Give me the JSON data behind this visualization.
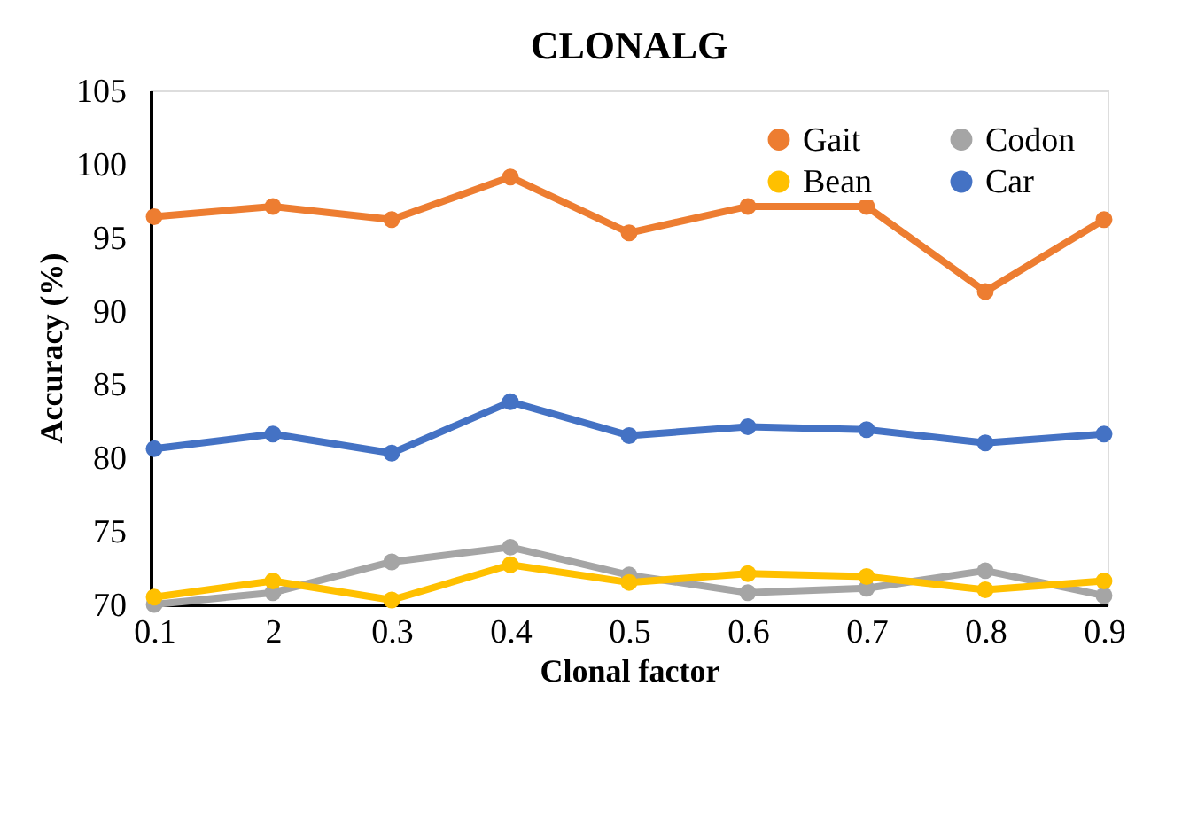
{
  "chart_data": {
    "type": "line",
    "title": "CLONALG",
    "xlabel": "Clonal factor",
    "ylabel": "Accuracy (%)",
    "categories": [
      "0.1",
      "2",
      "0.3",
      "0.4",
      "0.5",
      "0.6",
      "0.7",
      "0.8",
      "0.9"
    ],
    "series": [
      {
        "name": "Gait",
        "color": "#ed7d31",
        "values": [
          96.4,
          97.1,
          96.2,
          99.1,
          95.3,
          97.1,
          97.1,
          91.3,
          96.2
        ]
      },
      {
        "name": "Codon",
        "color": "#a5a5a5",
        "values": [
          70.0,
          70.8,
          72.9,
          73.9,
          72.0,
          70.8,
          71.1,
          72.3,
          70.6
        ]
      },
      {
        "name": "Bean",
        "color": "#ffc000",
        "values": [
          70.5,
          71.6,
          70.3,
          72.7,
          71.5,
          72.1,
          71.9,
          71.0,
          71.6
        ]
      },
      {
        "name": "Car",
        "color": "#4472c4",
        "values": [
          80.6,
          81.6,
          80.3,
          83.8,
          81.5,
          82.1,
          81.9,
          81.0,
          81.6
        ]
      }
    ],
    "ylim": [
      70,
      105
    ],
    "yticks": [
      70,
      75,
      80,
      85,
      90,
      95,
      100,
      105
    ],
    "grid": false,
    "legend": "top right",
    "marker": "circle",
    "line_style": "solid"
  }
}
